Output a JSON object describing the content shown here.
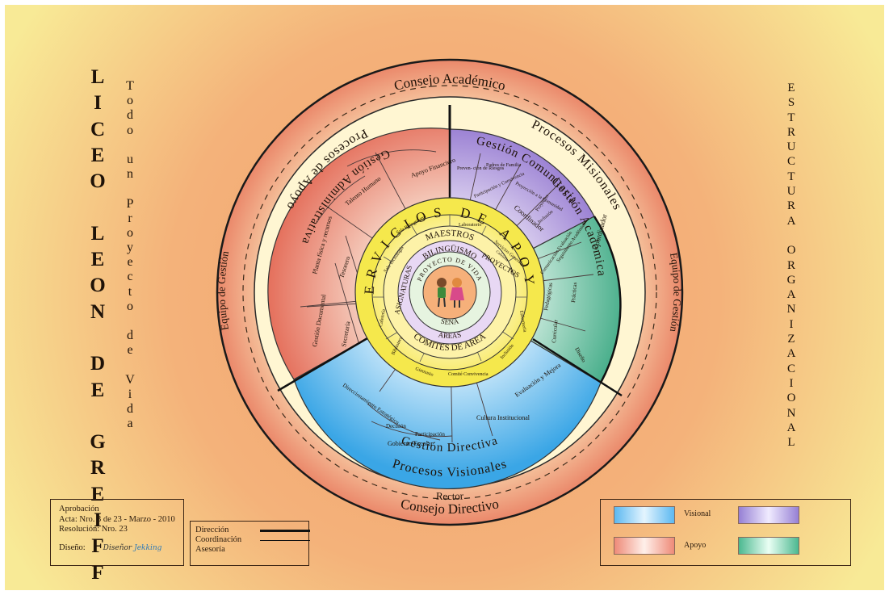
{
  "poster": {
    "school_name_letters": [
      "L",
      "I",
      "C",
      "E",
      "O",
      "",
      "L",
      "E",
      "O",
      "N",
      "",
      "D",
      "E",
      "",
      "G",
      "R",
      "E",
      "I",
      "F",
      "F"
    ],
    "motto_letters": [
      "T",
      "o",
      "d",
      "o",
      "",
      "u",
      "n",
      "",
      "P",
      "r",
      "o",
      "y",
      "e",
      "c",
      "t",
      "o",
      "",
      "d",
      "e",
      "",
      "V",
      "i",
      "d",
      "a"
    ],
    "structure_letters": [
      "E",
      "S",
      "T",
      "R",
      "U",
      "C",
      "T",
      "U",
      "R",
      "A",
      "",
      "O",
      "R",
      "G",
      "A",
      "N",
      "I",
      "Z",
      "A",
      "C",
      "I",
      "O",
      "N",
      "A",
      "L"
    ]
  },
  "diagram": {
    "outer_top": "Consejo Académico",
    "outer_bottom": "Consejo Directivo",
    "left_side": "Equipo de Gestión",
    "right_side": "Equipo de Gestión",
    "rector": "Rector",
    "ring_apoyo": "Procesos de Apoyo",
    "ring_misionales": "Procesos Misionales",
    "ring_visionales": "Procesos Visionales",
    "gestion_administrativa": "Gestión Administrativa",
    "gestion_comunitaria": "Gestión Comunitaria",
    "coordinador_a": "Coordinador",
    "coordinador_b": "Coordinador",
    "gestion_academica": "Gestión Académica",
    "gestion_directiva": "Gestión Directiva",
    "servicios_de_apoyo": "SERVICIOS DE APOYO",
    "admin_cells": [
      "Apoyo Financiero",
      "Talento Humano",
      "Planta física y recursos",
      "Tesorero",
      "Gestión Documental",
      "Secretaría"
    ],
    "comunitaria_cells": [
      "Preven- ción de Riesgos",
      "Padres de Familia",
      "Participación y Convivencia",
      "Proyección a la Comunidad",
      "Inclusión",
      "Proyectos"
    ],
    "academica_cells": [
      "Seguimiento Académico",
      "Comunicación Evaluación",
      "Pedagógicas",
      "Prácticas",
      "Curricular",
      "Diseño"
    ],
    "directiva_cells": [
      "Direccionamiento Estratégico",
      "Cultura Institucional",
      "Evaluación y Mejora",
      "Gobierno Escolar",
      "Decisión",
      "Participación"
    ],
    "servicios_cells": [
      "Sala Bilingüismo",
      "Laboratorio",
      "Sala Tecnología",
      "Cafetería",
      "Biblioteca",
      "Gimnasio",
      "Comité Convivencia",
      "Inclusión",
      "Enfermería",
      "Servicios Generales",
      "Cafetería",
      "Aseo"
    ],
    "maestros": "MAESTROS",
    "asignaturas": "ASIGNATURAS",
    "proyectos": "PROYECTOS",
    "bilinguismo": "BILINGÜISMO",
    "proyecto_de_vida": "PROYECTO DE VIDA",
    "sena": "SENA",
    "areas": "AREAS",
    "comites_de_area": "COMITES DE AREA"
  },
  "approval": {
    "line1": "Aprobación",
    "line2": "Acta: Nro. 3 de 23 - Marzo - 2010",
    "line3": "Resolución: Nro. 23",
    "design_label": "Diseño:",
    "design_name_a": "Diseñor",
    "design_name_b": "Jekking"
  },
  "line_legend": {
    "direccion": "Dirección",
    "coordinacion": "Coordinación",
    "asesoria": "Asesoría"
  },
  "color_legend": {
    "visional_label": "Visional",
    "apoyo_label": "Apoyo",
    "visional_color": "#3aa8e6",
    "apoyo_color": "#e87060",
    "comunitaria_color": "#8a6cc8",
    "academica_color": "#3aa880"
  },
  "colors": {
    "background_center": "#f6b97a",
    "background_edge": "#f6ec9a",
    "outer_ring": "#e8765a",
    "cream_ring": "#fff6d0",
    "yellow": "#f6ea52"
  }
}
